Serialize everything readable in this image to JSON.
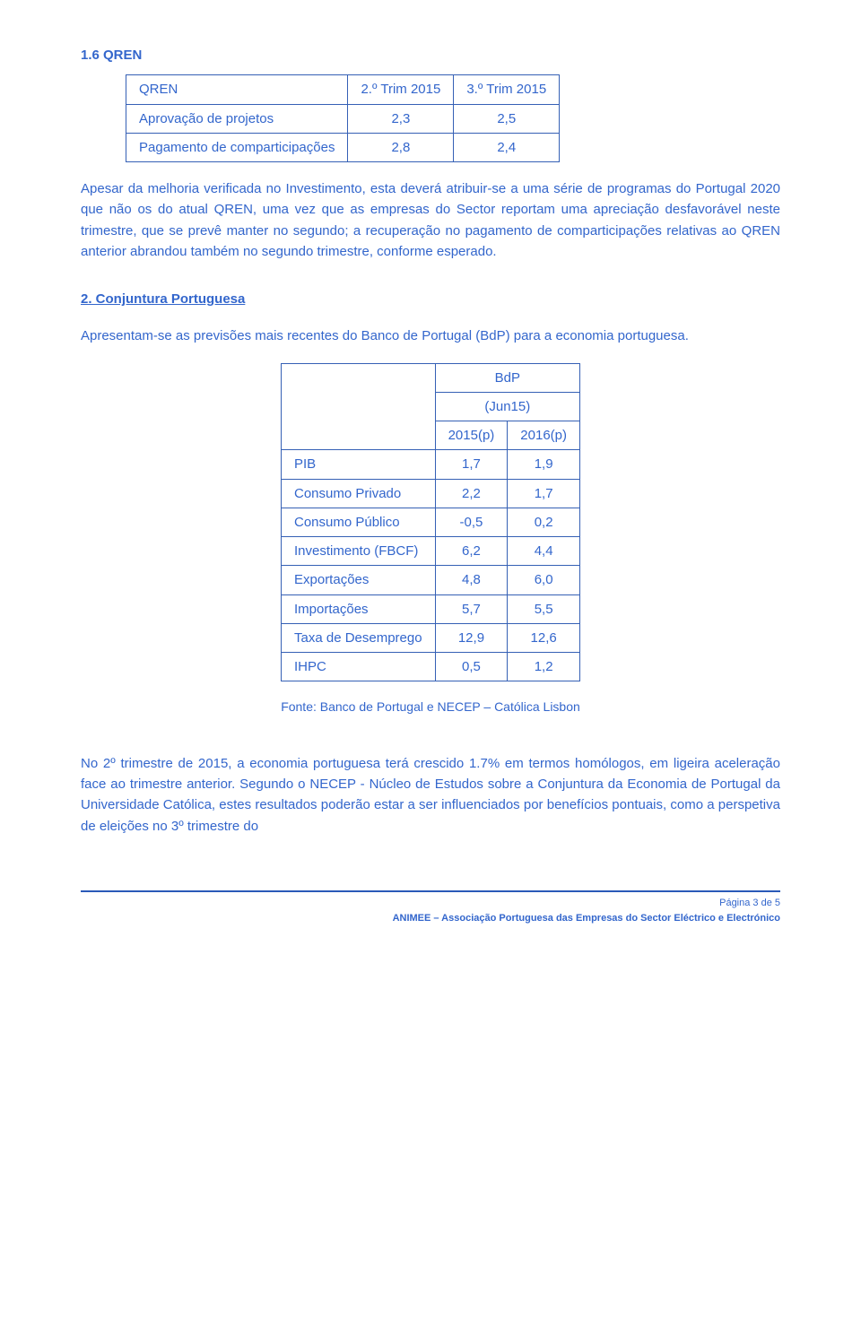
{
  "section_heading": "1.6 QREN",
  "qren_table": {
    "headers": [
      "QREN",
      "2.º Trim 2015",
      "3.º Trim 2015"
    ],
    "rows": [
      {
        "label": "Aprovação de projetos",
        "c1": "2,3",
        "c2": "2,5"
      },
      {
        "label": "Pagamento de comparticipações",
        "c1": "2,8",
        "c2": "2,4"
      }
    ]
  },
  "para1": "Apesar da melhoria verificada no Investimento, esta deverá atribuir-se a uma série de programas do Portugal 2020 que não os do atual QREN, uma vez que as empresas do Sector reportam uma apreciação desfavorável neste trimestre, que se prevê manter no segundo; a recuperação no pagamento de comparticipações relativas ao QREN anterior abrandou também no segundo trimestre, conforme esperado.",
  "section2_link": "2. Conjuntura Portuguesa",
  "para2": "Apresentam-se as previsões mais recentes do Banco de Portugal (BdP) para a economia portuguesa.",
  "bdp_table": {
    "top_header": "BdP",
    "sub_header": "(Jun15)",
    "col_headers": [
      "2015(p)",
      "2016(p)"
    ],
    "rows": [
      {
        "label": "PIB",
        "c1": "1,7",
        "c2": "1,9"
      },
      {
        "label": "Consumo Privado",
        "c1": "2,2",
        "c2": "1,7"
      },
      {
        "label": "Consumo Público",
        "c1": "-0,5",
        "c2": "0,2"
      },
      {
        "label": "Investimento (FBCF)",
        "c1": "6,2",
        "c2": "4,4"
      },
      {
        "label": "Exportações",
        "c1": "4,8",
        "c2": "6,0"
      },
      {
        "label": "Importações",
        "c1": "5,7",
        "c2": "5,5"
      },
      {
        "label": "Taxa de Desemprego",
        "c1": "12,9",
        "c2": "12,6"
      },
      {
        "label": "IHPC",
        "c1": "0,5",
        "c2": "1,2"
      }
    ],
    "source": "Fonte: Banco de Portugal e NECEP – Católica Lisbon"
  },
  "para3": "No 2º trimestre de 2015, a economia portuguesa terá crescido 1.7% em termos homólogos, em ligeira aceleração face ao trimestre anterior. Segundo o NECEP - Núcleo de Estudos sobre a Conjuntura da Economia de Portugal da Universidade Católica, estes resultados poderão estar a ser influenciados por benefícios pontuais, como a perspetiva de eleições no 3º trimestre do",
  "footer": {
    "page": "Página 3 de 5",
    "org": "ANIMEE – Associação Portuguesa das Empresas do Sector Eléctrico e Electrónico"
  }
}
